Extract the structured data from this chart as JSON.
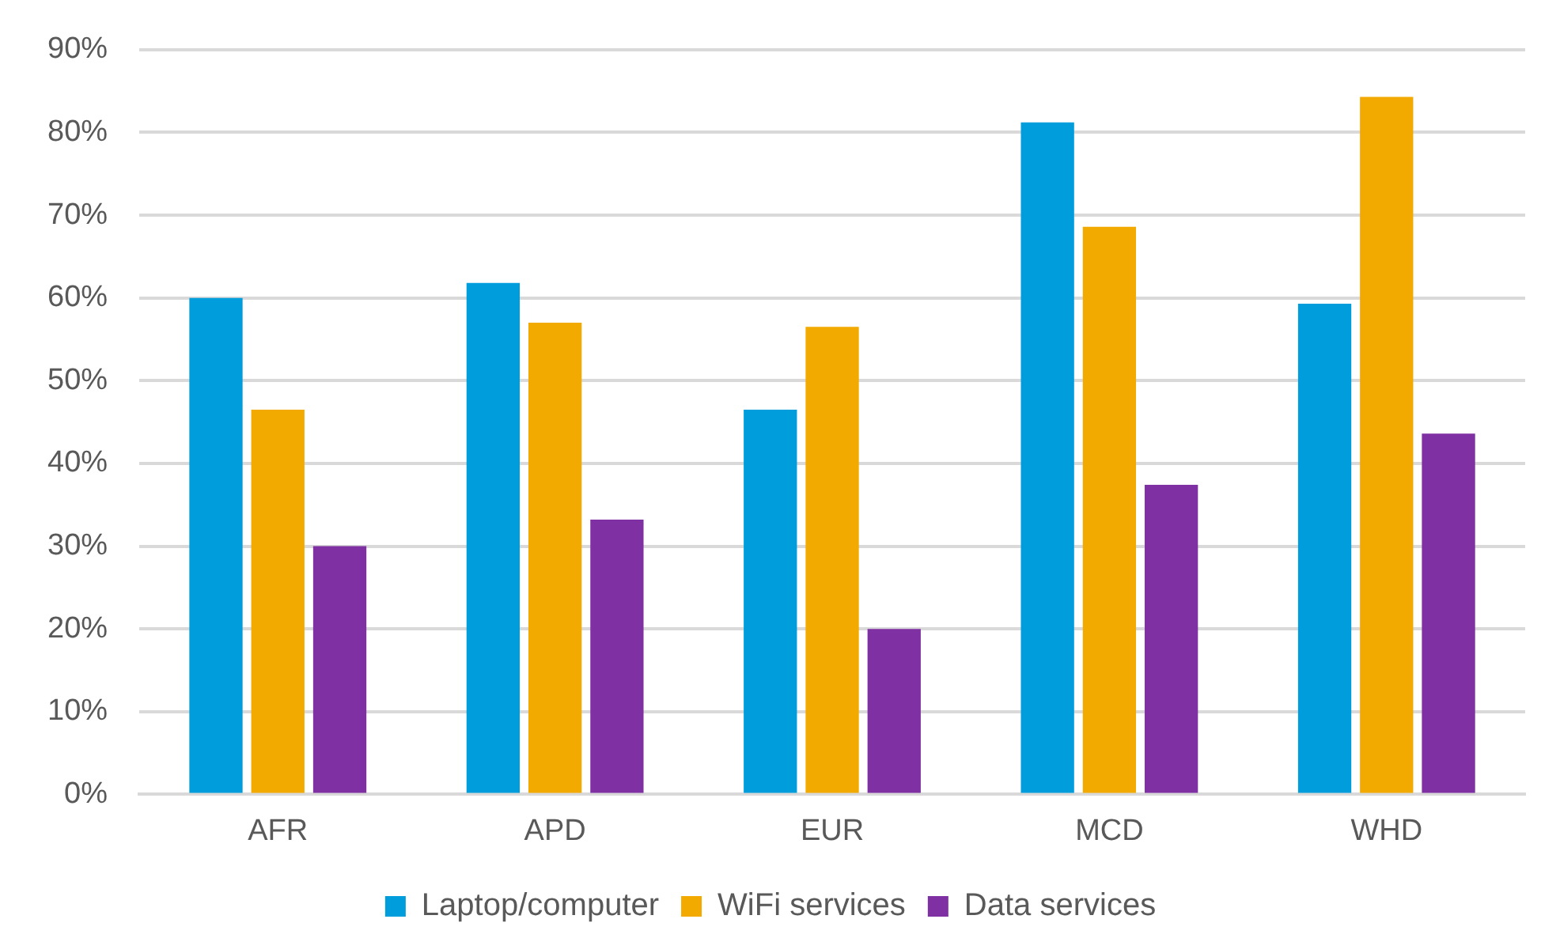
{
  "chart_data": {
    "type": "bar",
    "categories": [
      "AFR",
      "APD",
      "EUR",
      "MCD",
      "WHD"
    ],
    "series": [
      {
        "name": "Laptop/computer",
        "color": "#009ddc",
        "values": [
          60,
          61.8,
          46.5,
          81.2,
          59.3
        ]
      },
      {
        "name": "WiFi services",
        "color": "#f2a900",
        "values": [
          46.5,
          57,
          56.5,
          68.6,
          84.3
        ]
      },
      {
        "name": "Data services",
        "color": "#7f30a3",
        "values": [
          30,
          33.2,
          20,
          37.4,
          43.6
        ]
      }
    ],
    "ylim": [
      0,
      90
    ],
    "yticks": [
      {
        "value": 0,
        "label": "0%"
      },
      {
        "value": 10,
        "label": "10%"
      },
      {
        "value": 20,
        "label": "20%"
      },
      {
        "value": 30,
        "label": "30%"
      },
      {
        "value": 40,
        "label": "40%"
      },
      {
        "value": 50,
        "label": "50%"
      },
      {
        "value": 60,
        "label": "60%"
      },
      {
        "value": 70,
        "label": "70%"
      },
      {
        "value": 80,
        "label": "80%"
      },
      {
        "value": 90,
        "label": "90%"
      }
    ],
    "grid": "y",
    "legend": "bottom"
  }
}
